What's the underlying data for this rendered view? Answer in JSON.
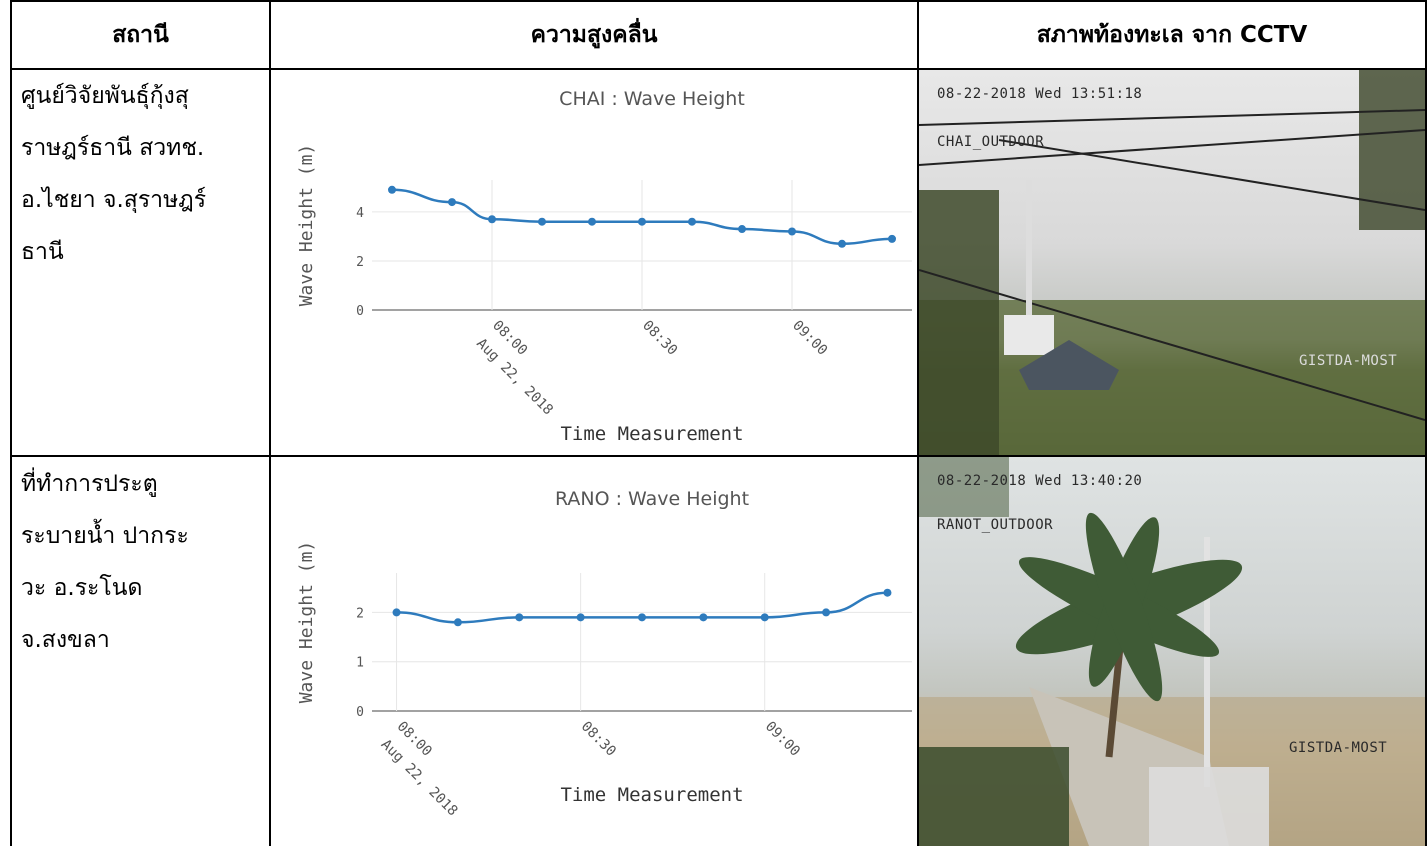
{
  "headers": {
    "station": "สถานี",
    "wave_height": "ความสูงคลื่น",
    "cctv": "สภาพท้องทะเล จาก CCTV"
  },
  "rows": [
    {
      "station_name": "ศูนย์วิจัยพันธุ์กุ้งสุ\nราษฎร์ธานี สวทช.\nอ.ไชยา จ.สุราษฎร์\nธานี",
      "cctv_timestamp": "08-22-2018 Wed 13:51:18",
      "cctv_camera": "CHAI_OUTDOOR",
      "cctv_watermark": "GISTDA-MOST"
    },
    {
      "station_name": "ที่ทำการประตู\nระบายน้ำ ปากระ\nวะ อ.ระโนด\nจ.สงขลา",
      "cctv_timestamp": "08-22-2018 Wed 13:40:20",
      "cctv_camera": "RANOT_OUTDOOR",
      "cctv_watermark": "GISTDA-MOST"
    }
  ],
  "colors": {
    "series": "#2e7bbd",
    "axis_text": "#555555",
    "grid": "#e6e6e6"
  },
  "chart_data": [
    {
      "type": "line",
      "title": "CHAI : Wave Height",
      "xlabel": "Time Measurement",
      "ylabel": "Wave Height (m)",
      "x_ticks": [
        "08:00",
        "08:30",
        "09:00"
      ],
      "x_tick_sub": "Aug 22, 2018",
      "y_ticks": [
        0,
        2,
        4
      ],
      "ylim": [
        0,
        5.3
      ],
      "x": [
        "07:40",
        "07:52",
        "08:00",
        "08:10",
        "08:20",
        "08:30",
        "08:40",
        "08:50",
        "09:00",
        "09:10",
        "09:20"
      ],
      "values": [
        4.9,
        4.4,
        3.7,
        3.6,
        3.6,
        3.6,
        3.6,
        3.3,
        3.2,
        2.7,
        2.9
      ],
      "grid": true
    },
    {
      "type": "line",
      "title": "RANO : Wave Height",
      "xlabel": "Time Measurement",
      "ylabel": "Wave Height (m)",
      "x_ticks": [
        "08:00",
        "08:30",
        "09:00"
      ],
      "x_tick_sub": "Aug 22, 2018",
      "y_ticks": [
        0,
        1,
        2
      ],
      "ylim": [
        0,
        2.8
      ],
      "x": [
        "08:00",
        "08:10",
        "08:20",
        "08:30",
        "08:40",
        "08:50",
        "09:00",
        "09:10",
        "09:20"
      ],
      "values": [
        2.0,
        1.8,
        1.9,
        1.9,
        1.9,
        1.9,
        1.9,
        2.0,
        2.4
      ],
      "grid": true
    }
  ]
}
